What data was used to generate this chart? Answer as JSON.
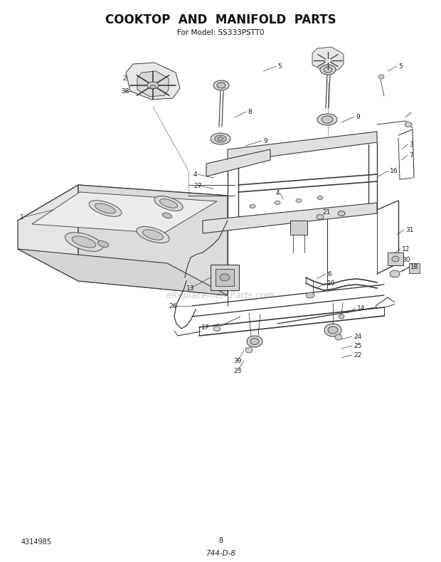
{
  "title": "COOKTOP  AND  MANIFOLD  PARTS",
  "subtitle": "For Model: SS333PSTT0",
  "title_fontsize": 12,
  "subtitle_fontsize": 7.5,
  "bg_color": "#ffffff",
  "watermark": "eReplacementParts.com",
  "page_num": "8",
  "part_num": "4314985",
  "doc_code": "744-D-8",
  "line_color": "#3a3a3a",
  "fill_light": "#f2f2f2",
  "fill_mid": "#e0e0e0",
  "fill_dark": "#c8c8c8"
}
